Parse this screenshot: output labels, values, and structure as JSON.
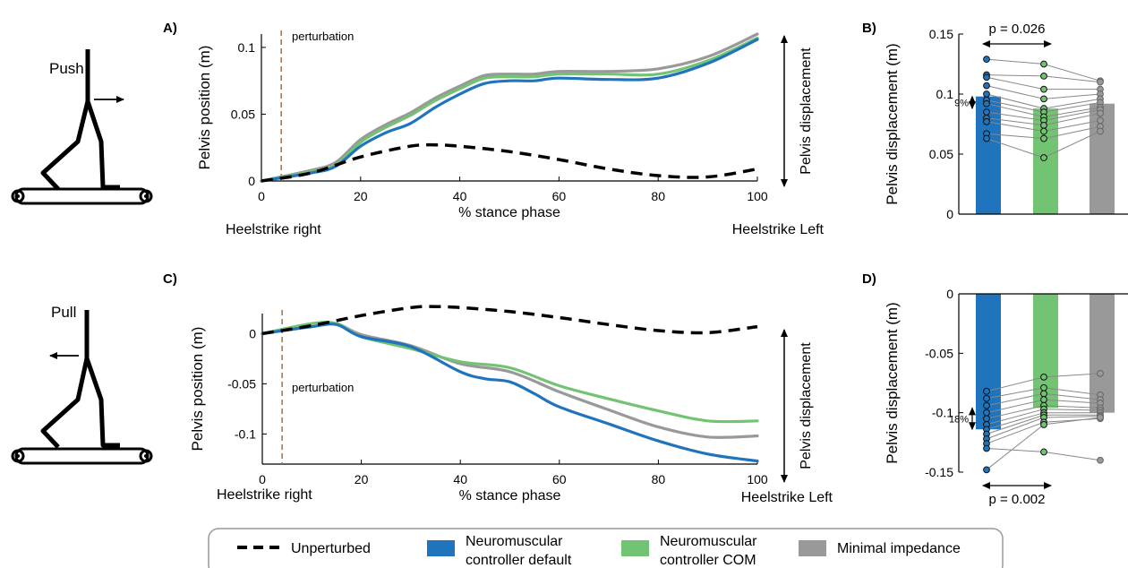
{
  "colors": {
    "default": "#1f74bd",
    "com": "#72c372",
    "minimal": "#999999",
    "unperturbed": "#000000",
    "perturbation": "#a0704b"
  },
  "figure": {
    "push_label": "Push",
    "pull_label": "Pull",
    "heelstrike_right": "Heelstrike right",
    "heelstrike_left": "Heelstrike Left",
    "pelvis_displacement_arrow": "Pelvis displacement",
    "perturbation_label": "perturbation"
  },
  "legend": {
    "unperturbed": "Unperturbed",
    "default_line1": "Neuromuscular",
    "default_line2": "controller default",
    "com_line1": "Neuromuscular",
    "com_line2": "controller COM",
    "minimal": "Minimal impedance"
  },
  "chart_data": [
    {
      "panel": "A)",
      "type": "line",
      "xlabel": "% stance phase",
      "ylabel": "Pelvis position (m)",
      "xlim": [
        0,
        100
      ],
      "ylim": [
        0,
        0.11
      ],
      "xticks": [
        0,
        20,
        40,
        60,
        80,
        100
      ],
      "yticks": [
        0,
        0.05,
        0.1
      ],
      "ytick_labels": [
        "0",
        "0.05",
        "0.1"
      ],
      "perturbation_x": 4,
      "series": [
        {
          "name": "Unperturbed",
          "x": [
            0,
            10,
            20,
            30,
            35,
            40,
            50,
            60,
            70,
            80,
            90,
            100
          ],
          "y": [
            0,
            0.006,
            0.018,
            0.026,
            0.027,
            0.026,
            0.022,
            0.016,
            0.009,
            0.004,
            0.003,
            0.009
          ]
        },
        {
          "name": "Neuromuscular controller default",
          "x": [
            0,
            10,
            15,
            20,
            25,
            30,
            35,
            40,
            45,
            50,
            55,
            60,
            70,
            80,
            90,
            100
          ],
          "y": [
            0,
            0.006,
            0.011,
            0.026,
            0.036,
            0.043,
            0.055,
            0.065,
            0.073,
            0.075,
            0.075,
            0.077,
            0.076,
            0.077,
            0.088,
            0.106
          ]
        },
        {
          "name": "Neuromuscular controller COM",
          "x": [
            0,
            10,
            15,
            20,
            25,
            30,
            35,
            40,
            45,
            50,
            55,
            60,
            70,
            80,
            90,
            100
          ],
          "y": [
            0,
            0.007,
            0.012,
            0.029,
            0.04,
            0.049,
            0.06,
            0.069,
            0.077,
            0.078,
            0.078,
            0.08,
            0.08,
            0.08,
            0.09,
            0.107
          ]
        },
        {
          "name": "Minimal impedance",
          "x": [
            0,
            10,
            15,
            20,
            25,
            30,
            35,
            40,
            45,
            50,
            55,
            60,
            70,
            80,
            90,
            100
          ],
          "y": [
            0,
            0.008,
            0.014,
            0.031,
            0.042,
            0.051,
            0.062,
            0.071,
            0.079,
            0.08,
            0.08,
            0.082,
            0.082,
            0.084,
            0.093,
            0.11
          ]
        }
      ]
    },
    {
      "panel": "B)",
      "type": "bar",
      "ylabel": "Pelvis displacement (m)",
      "ylim": [
        0,
        0.15
      ],
      "yticks": [
        0,
        0.05,
        0.1,
        0.15
      ],
      "ytick_labels": [
        "0",
        "0.05",
        "0.1",
        "0.15"
      ],
      "values": [
        0.098,
        0.088,
        0.092
      ],
      "subjects": [
        [
          0.129,
          0.125,
          0.111
        ],
        [
          0.116,
          0.115,
          0.11
        ],
        [
          0.114,
          0.104,
          0.104
        ],
        [
          0.107,
          0.096,
          0.1
        ],
        [
          0.1,
          0.088,
          0.096
        ],
        [
          0.095,
          0.085,
          0.093
        ],
        [
          0.092,
          0.081,
          0.089
        ],
        [
          0.085,
          0.078,
          0.087
        ],
        [
          0.08,
          0.074,
          0.084
        ],
        [
          0.077,
          0.069,
          0.078
        ],
        [
          0.067,
          0.063,
          0.073
        ],
        [
          0.063,
          0.047,
          0.069
        ]
      ],
      "pvalue": "p = 0.026",
      "percent": "9%"
    },
    {
      "panel": "C)",
      "type": "line",
      "xlabel": "% stance phase",
      "ylabel": "Pelvis position (m)",
      "xlim": [
        0,
        100
      ],
      "ylim": [
        -0.13,
        0.02
      ],
      "xticks": [
        0,
        20,
        40,
        60,
        80,
        100
      ],
      "yticks": [
        0,
        -0.05,
        -0.1
      ],
      "ytick_labels": [
        "0",
        "-0.05",
        "-0.1"
      ],
      "perturbation_x": 4,
      "series": [
        {
          "name": "Unperturbed",
          "x": [
            0,
            10,
            20,
            30,
            35,
            40,
            50,
            60,
            70,
            80,
            90,
            100
          ],
          "y": [
            0,
            0.008,
            0.018,
            0.026,
            0.027,
            0.026,
            0.022,
            0.016,
            0.009,
            0.003,
            0.001,
            0.007
          ]
        },
        {
          "name": "Neuromuscular controller default",
          "x": [
            0,
            10,
            15,
            20,
            30,
            40,
            45,
            50,
            55,
            60,
            70,
            80,
            90,
            100
          ],
          "y": [
            0,
            0.007,
            0.009,
            -0.003,
            -0.013,
            -0.038,
            -0.045,
            -0.048,
            -0.06,
            -0.073,
            -0.09,
            -0.107,
            -0.12,
            -0.127
          ]
        },
        {
          "name": "Neuromuscular controller COM",
          "x": [
            0,
            10,
            15,
            20,
            30,
            40,
            50,
            60,
            70,
            80,
            90,
            100
          ],
          "y": [
            0,
            0.01,
            0.01,
            -0.003,
            -0.015,
            -0.028,
            -0.034,
            -0.052,
            -0.065,
            -0.077,
            -0.087,
            -0.087
          ]
        },
        {
          "name": "Minimal impedance",
          "x": [
            0,
            10,
            15,
            20,
            30,
            40,
            50,
            60,
            70,
            80,
            90,
            100
          ],
          "y": [
            0,
            0.01,
            0.01,
            -0.001,
            -0.012,
            -0.03,
            -0.038,
            -0.058,
            -0.076,
            -0.093,
            -0.103,
            -0.102
          ]
        }
      ]
    },
    {
      "panel": "D)",
      "type": "bar",
      "ylabel": "Pelvis displacement (m)",
      "ylim": [
        -0.15,
        0
      ],
      "yticks": [
        0,
        -0.05,
        -0.1,
        -0.15
      ],
      "ytick_labels": [
        "0",
        "-0.05",
        "-0.1",
        "-0.15"
      ],
      "values": [
        -0.114,
        -0.096,
        -0.1
      ],
      "subjects": [
        [
          -0.082,
          -0.07,
          -0.067
        ],
        [
          -0.088,
          -0.079,
          -0.085
        ],
        [
          -0.094,
          -0.084,
          -0.089
        ],
        [
          -0.1,
          -0.089,
          -0.092
        ],
        [
          -0.105,
          -0.094,
          -0.096
        ],
        [
          -0.11,
          -0.097,
          -0.098
        ],
        [
          -0.114,
          -0.1,
          -0.1
        ],
        [
          -0.118,
          -0.102,
          -0.102
        ],
        [
          -0.122,
          -0.104,
          -0.103
        ],
        [
          -0.126,
          -0.108,
          -0.105
        ],
        [
          -0.13,
          -0.133,
          -0.14
        ],
        [
          -0.148,
          -0.11,
          -0.104
        ]
      ],
      "pvalue": "p = 0.002",
      "percent": "18%"
    }
  ]
}
